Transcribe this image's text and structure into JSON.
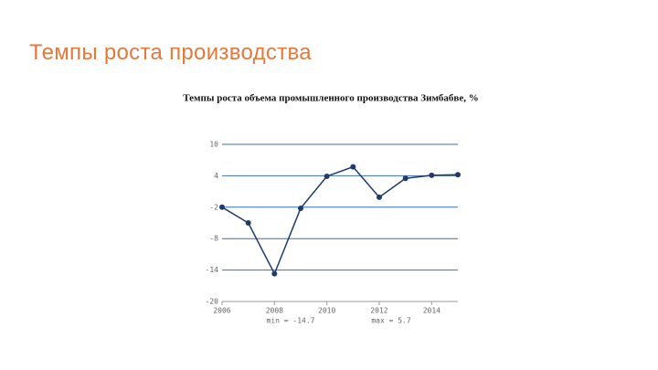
{
  "slide_title": "Темпы роста производства",
  "chart_data": {
    "type": "line",
    "title": "Темпы роста объема промышленного производства Зимбабве, %",
    "x": [
      2006,
      2007,
      2008,
      2009,
      2010,
      2011,
      2012,
      2013,
      2014,
      2015
    ],
    "series": [
      {
        "name": "Темпы роста",
        "color": "#1f3a6e",
        "values": [
          -2.0,
          -5.0,
          -14.7,
          -2.2,
          3.9,
          5.7,
          -0.1,
          3.5,
          4.1,
          4.2
        ]
      }
    ],
    "xlim": [
      2006,
      2015
    ],
    "xticks": [
      2006,
      2008,
      2010,
      2012,
      2014
    ],
    "ylim": [
      -20,
      10
    ],
    "yticks": [
      10,
      4,
      -2,
      -8,
      -14,
      -20
    ],
    "grid": true,
    "grid_color": "#3a6fb5",
    "annotations": [
      "min = -14.7",
      "max = 5.7"
    ]
  }
}
